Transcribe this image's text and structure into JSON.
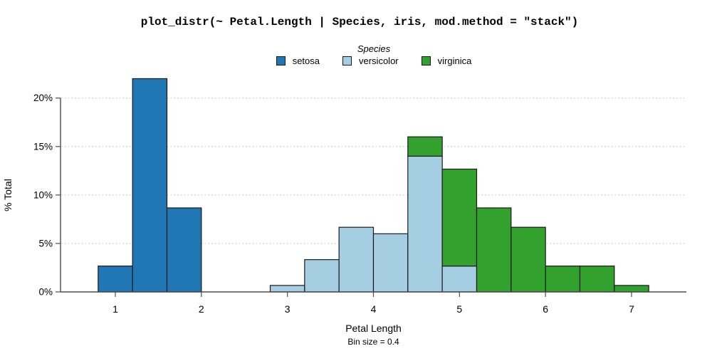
{
  "title": "plot_distr(~ Petal.Length | Species, iris, mod.method = \"stack\")",
  "legend": {
    "title": "Species",
    "entries": [
      {
        "label": "setosa",
        "color": "#2177b4"
      },
      {
        "label": "versicolor",
        "color": "#a6cee3"
      },
      {
        "label": "virginica",
        "color": "#33a12e"
      }
    ]
  },
  "chart_data": {
    "type": "bar",
    "subtype": "stacked-histogram",
    "title": "plot_distr(~ Petal.Length | Species, iris, mod.method = \"stack\")",
    "xlabel": "Petal Length",
    "ylabel": "% Total",
    "caption": "Bin size = 0.4",
    "bin_size": 0.4,
    "bin_centers": [
      1.0,
      1.4,
      1.8,
      3.0,
      3.4,
      3.8,
      4.2,
      4.6,
      5.0,
      5.4,
      5.8,
      6.2,
      6.6,
      7.0
    ],
    "series": [
      {
        "name": "setosa",
        "color": "#2177b4",
        "values": [
          2.67,
          22,
          8.67,
          0,
          0,
          0,
          0,
          0,
          0,
          0,
          0,
          0,
          0,
          0
        ]
      },
      {
        "name": "versicolor",
        "color": "#a6cee3",
        "values": [
          0,
          0,
          0,
          0.67,
          3.33,
          6.67,
          6,
          14,
          2.67,
          0,
          0,
          0,
          0,
          0
        ]
      },
      {
        "name": "virginica",
        "color": "#33a12e",
        "values": [
          0,
          0,
          0,
          0,
          0,
          0,
          0,
          2,
          10,
          8.67,
          6.67,
          2.67,
          2.67,
          0.67
        ]
      }
    ],
    "x_ticks": [
      1,
      2,
      3,
      4,
      5,
      6,
      7
    ],
    "y_ticks": [
      0,
      5,
      10,
      15,
      20
    ],
    "y_tick_labels": [
      "0%",
      "5%",
      "10%",
      "15%",
      "20%"
    ],
    "xlim": [
      0.36,
      7.64
    ],
    "ylim": [
      0,
      22.5
    ],
    "grid": "horizontal dotted lines at 5%, 10%, 15%, 20%",
    "legend_position": "top-center",
    "style": {
      "bar_stroke": "#1a1a1a",
      "axis_color": "#4d4d4d",
      "grid_color": "#c9c9c9",
      "text_color": "#000000"
    }
  }
}
